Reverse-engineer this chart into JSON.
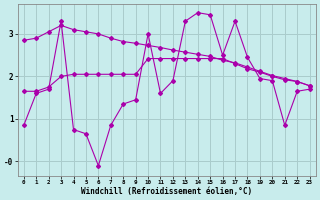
{
  "xlabel": "Windchill (Refroidissement éolien,°C)",
  "line_color": "#AA00AA",
  "marker": "D",
  "marker_size": 2.0,
  "bg_color": "#C8ECEC",
  "grid_color": "#AACCCC",
  "xlim": [
    -0.5,
    23.5
  ],
  "ylim": [
    -0.35,
    3.7
  ],
  "yticks": [
    0,
    1,
    2,
    3
  ],
  "ytick_labels": [
    "-0",
    "1",
    "2",
    "3"
  ],
  "xticks": [
    0,
    1,
    2,
    3,
    4,
    5,
    6,
    7,
    8,
    9,
    10,
    11,
    12,
    13,
    14,
    15,
    16,
    17,
    18,
    19,
    20,
    21,
    22,
    23
  ],
  "series": [
    {
      "x": [
        0,
        1,
        2,
        3,
        4,
        5,
        6,
        7,
        8,
        9,
        10,
        11,
        12,
        13,
        14,
        15,
        16,
        17,
        18,
        19,
        20,
        21,
        22,
        23
      ],
      "y": [
        0.85,
        1.6,
        1.7,
        3.3,
        0.75,
        0.65,
        -0.1,
        0.85,
        1.35,
        1.45,
        3.0,
        1.6,
        1.9,
        3.3,
        3.5,
        3.45,
        2.5,
        3.3,
        2.45,
        1.95,
        1.9,
        0.85,
        1.65,
        1.7
      ]
    },
    {
      "x": [
        0,
        1,
        2,
        3,
        4,
        5,
        6,
        7,
        8,
        9,
        10,
        11,
        12,
        13,
        14,
        15,
        16,
        17,
        18,
        19,
        20,
        21,
        22,
        23
      ],
      "y": [
        2.85,
        2.9,
        3.05,
        3.2,
        3.1,
        3.05,
        3.0,
        2.9,
        2.82,
        2.78,
        2.73,
        2.68,
        2.62,
        2.57,
        2.52,
        2.47,
        2.38,
        2.32,
        2.22,
        2.12,
        2.02,
        1.95,
        1.88,
        1.78
      ]
    },
    {
      "x": [
        0,
        1,
        2,
        3,
        4,
        5,
        6,
        7,
        8,
        9,
        10,
        11,
        12,
        13,
        14,
        15,
        16,
        17,
        18,
        19,
        20,
        21,
        22,
        23
      ],
      "y": [
        1.65,
        1.65,
        1.75,
        2.0,
        2.05,
        2.05,
        2.05,
        2.05,
        2.05,
        2.05,
        2.42,
        2.42,
        2.42,
        2.42,
        2.42,
        2.42,
        2.42,
        2.3,
        2.18,
        2.1,
        2.0,
        1.92,
        1.88,
        1.78
      ]
    }
  ]
}
